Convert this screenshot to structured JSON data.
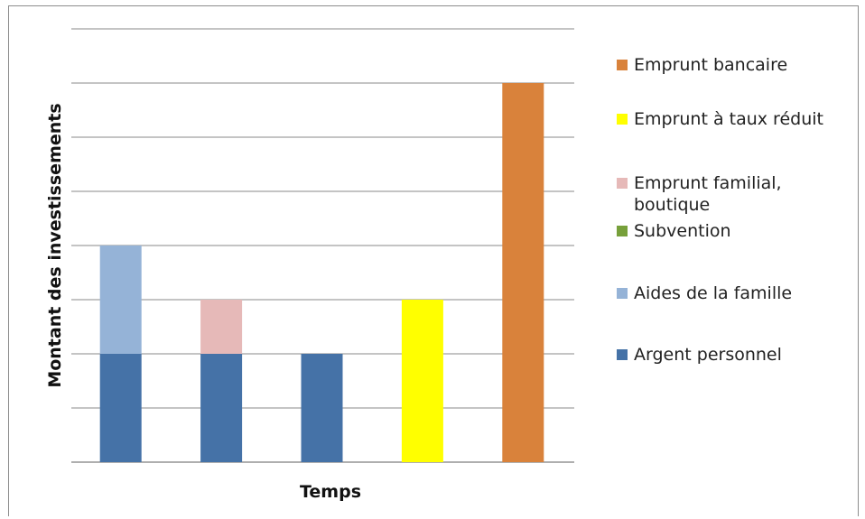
{
  "chart_data": {
    "type": "bar",
    "stacked": true,
    "categories": [
      "",
      "",
      "",
      "",
      ""
    ],
    "title": "",
    "xlabel": "Temps",
    "ylabel": "Montant des investissements",
    "ylim": [
      0,
      8
    ],
    "grid": true,
    "legend_position": "right",
    "series": [
      {
        "name": "Argent personnel",
        "color": "#4572a7",
        "values": [
          2,
          2,
          2,
          0,
          0
        ]
      },
      {
        "name": "Aides de la famille",
        "color": "#95b3d7",
        "values": [
          2,
          0,
          0,
          0,
          0
        ]
      },
      {
        "name": "Subvention",
        "color": "#77a03b",
        "values": [
          0,
          0,
          0,
          0,
          0
        ]
      },
      {
        "name": "Emprunt familial, boutique",
        "color": "#e6b9b8",
        "values": [
          0,
          1,
          0,
          0,
          0
        ]
      },
      {
        "name": "Emprunt à taux réduit",
        "color": "#ffff00",
        "values": [
          0,
          0,
          0,
          3,
          0
        ]
      },
      {
        "name": "Emprunt bancaire",
        "color": "#d9823b",
        "values": [
          0,
          0,
          0,
          0,
          7
        ]
      }
    ],
    "legend_order": [
      "Emprunt bancaire",
      "Emprunt à taux réduit",
      "Emprunt familial, boutique",
      "Subvention",
      "Aides de la famille",
      "Argent personnel"
    ],
    "legend_display": [
      [
        "Emprunt bancaire"
      ],
      [
        "Emprunt à taux réduit"
      ],
      [
        "Emprunt familial,",
        "boutique"
      ],
      [
        "Subvention"
      ],
      [
        "Aides de la famille"
      ],
      [
        "Argent personnel"
      ]
    ]
  }
}
